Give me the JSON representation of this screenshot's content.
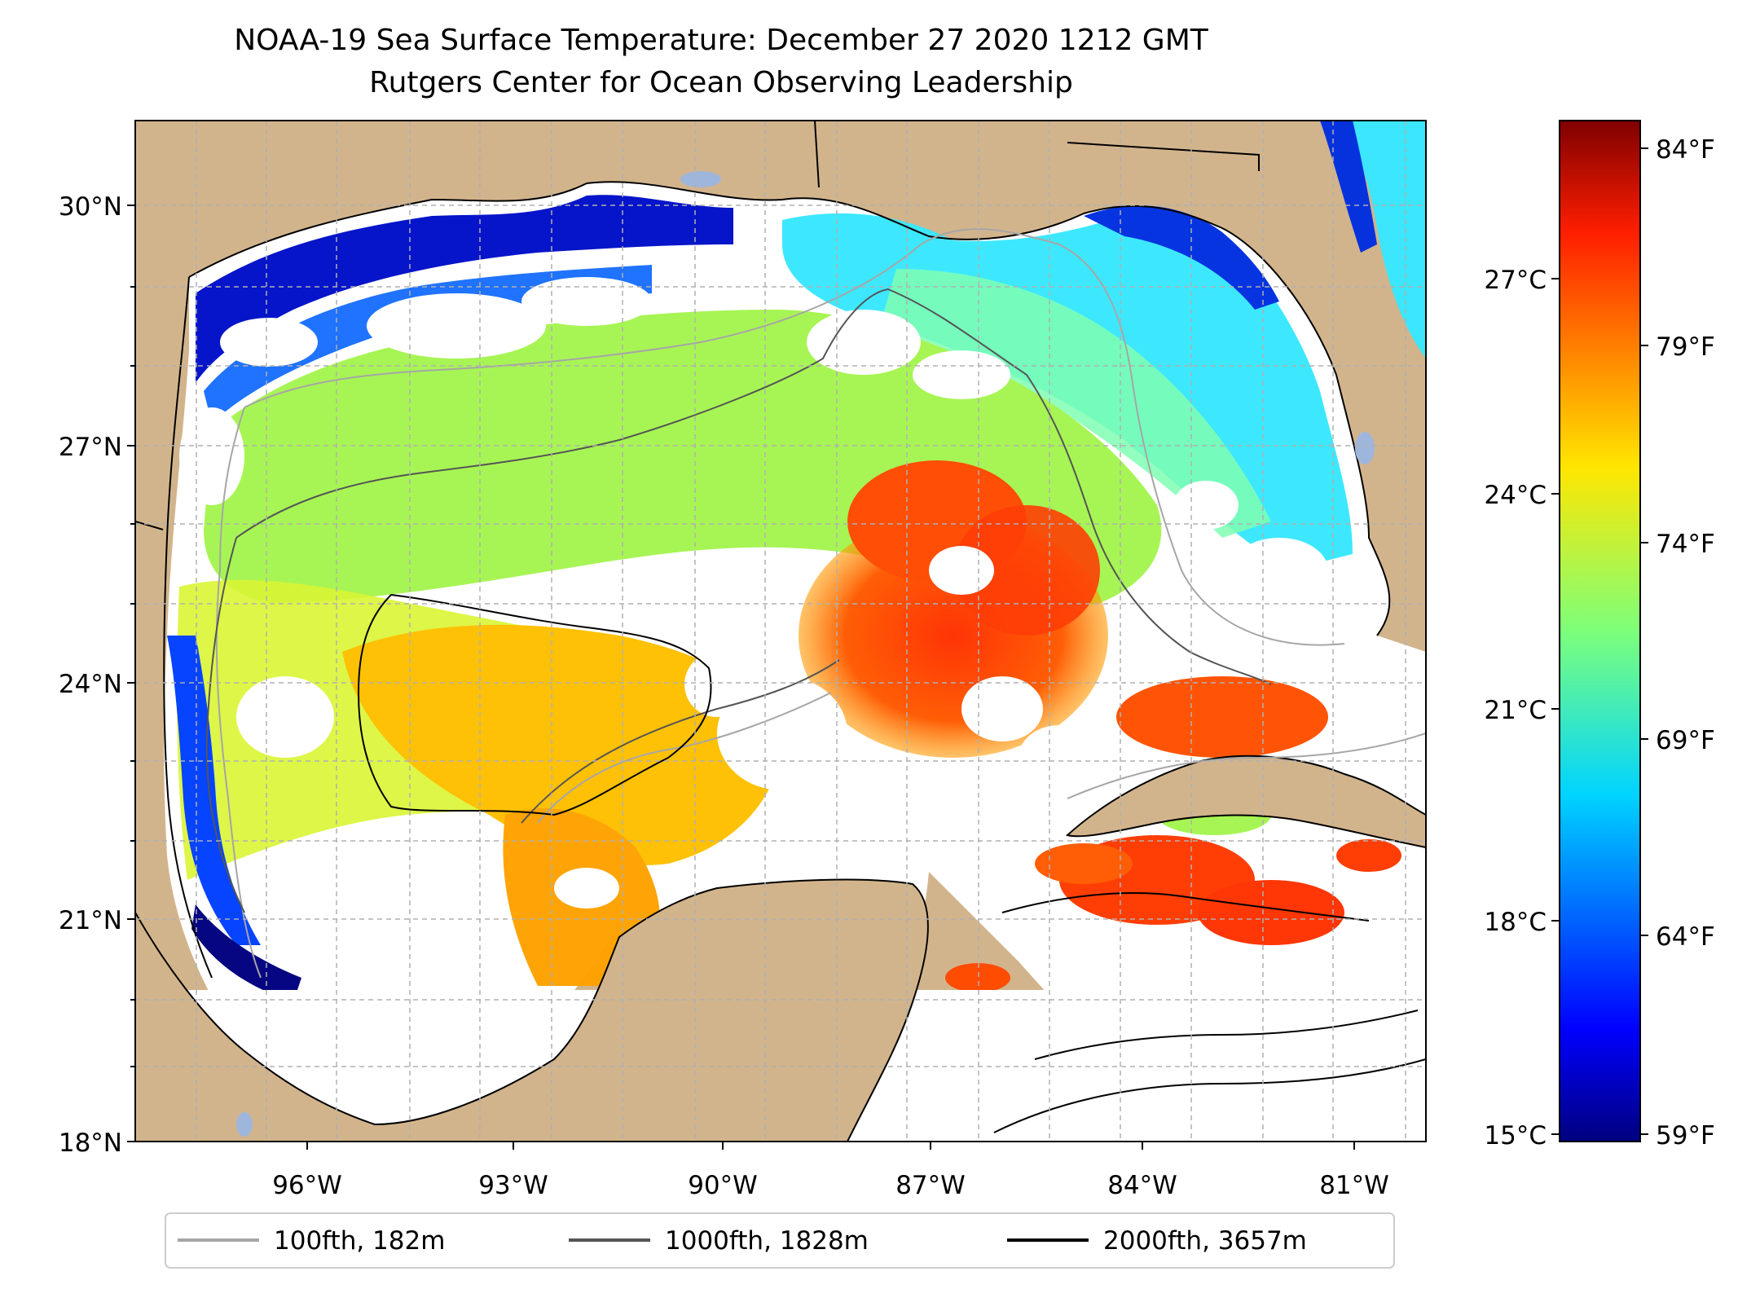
{
  "title": {
    "line1": "NOAA-19 Sea Surface Temperature: December 27 2020 1212 GMT",
    "line2": "Rutgers Center for Ocean Observing Leadership"
  },
  "map": {
    "lat_ticks": [
      "30°N",
      "27°N",
      "24°N",
      "21°N",
      "18°N"
    ],
    "lon_ticks": [
      "96°W",
      "93°W",
      "90°W",
      "87°W",
      "84°W",
      "81°W"
    ],
    "colors": {
      "land": "#d2b48c",
      "cloud_mask": "#ffffff",
      "inland_water": "#9fb6dc",
      "grid": "#b0b0b0"
    }
  },
  "legend": {
    "items": [
      {
        "label": "100fth, 182m",
        "color": "#a6a6a6"
      },
      {
        "label": "1000fth, 1828m",
        "color": "#555555"
      },
      {
        "label": "2000fth, 3657m",
        "color": "#000000"
      }
    ]
  },
  "colorbar": {
    "celsius_ticks": [
      "27°C",
      "24°C",
      "21°C",
      "18°C",
      "15°C"
    ],
    "fahrenheit_ticks": [
      "84°F",
      "79°F",
      "74°F",
      "69°F",
      "64°F",
      "59°F"
    ],
    "colormap": "jet",
    "range_c": [
      15,
      29.2
    ]
  }
}
